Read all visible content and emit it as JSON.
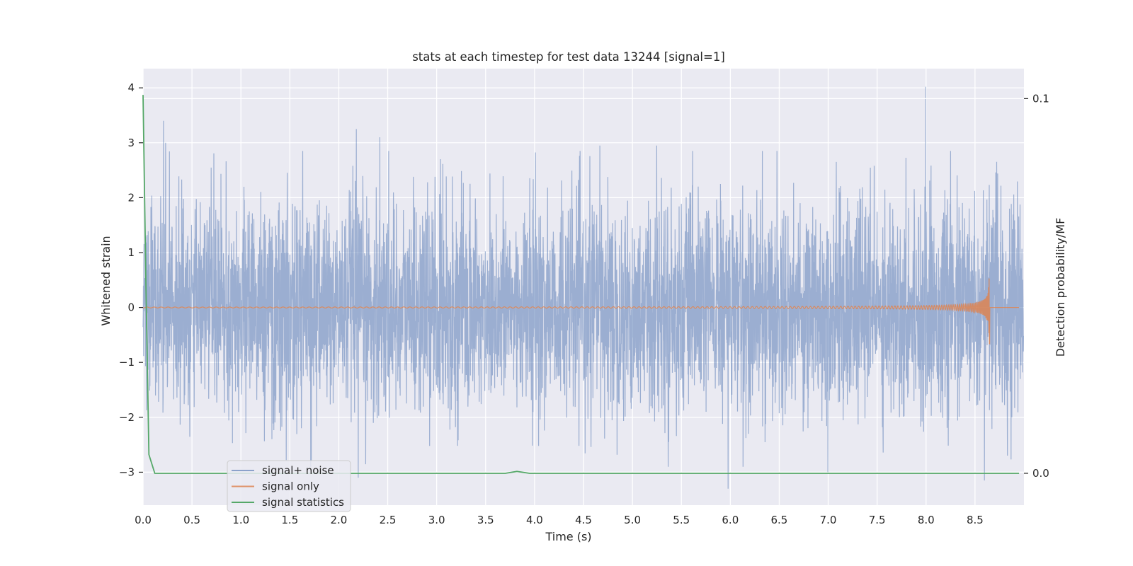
{
  "chart_data": {
    "type": "line",
    "title": "stats at each timestep for test data 13244 [signal=1]",
    "xlabel": "Time (s)",
    "ylabel": "Whitened strain",
    "ylabel_right": "Detection probability/MF",
    "xlim": [
      0,
      9.0
    ],
    "ylim": [
      -3.6,
      4.35
    ],
    "ylim_right": [
      -0.0085,
      0.108
    ],
    "x_ticks": [
      "0.0",
      "0.5",
      "1.0",
      "1.5",
      "2.0",
      "2.5",
      "3.0",
      "3.5",
      "4.0",
      "4.5",
      "5.0",
      "5.5",
      "6.0",
      "6.5",
      "7.0",
      "7.5",
      "8.0",
      "8.5"
    ],
    "y_ticks": [
      "4",
      "3",
      "2",
      "1",
      "0",
      "−1",
      "−2",
      "−3"
    ],
    "y_right_ticks": [
      "0.1",
      "0.0"
    ],
    "grid": true,
    "legend_position": "lower left",
    "colors": {
      "signal_noise": "#4c72b0",
      "signal_only": "#dd8452",
      "statistics": "#55a868",
      "background": "#eaeaf2",
      "grid": "#ffffff"
    },
    "series": [
      {
        "name": "signal+ noise",
        "axis": "left",
        "description_values": "whitened strain noise ~ N(0,1), range approx [-3.3, 4.0]",
        "notable_peaks": [
          {
            "x": 0.21,
            "y": 3.4
          },
          {
            "x": 0.23,
            "y": 3.0
          },
          {
            "x": 2.18,
            "y": 3.25
          },
          {
            "x": 2.42,
            "y": 3.1
          },
          {
            "x": 4.67,
            "y": 2.95
          },
          {
            "x": 5.25,
            "y": 2.95
          },
          {
            "x": 8.0,
            "y": 4.02
          },
          {
            "x": 2.2,
            "y": -3.1
          },
          {
            "x": 5.98,
            "y": -3.3
          },
          {
            "x": 8.6,
            "y": -3.15
          },
          {
            "x": 1.72,
            "y": -2.8
          },
          {
            "x": 7.0,
            "y": -3.0
          }
        ]
      },
      {
        "name": "signal only",
        "axis": "left",
        "chirp_start": 0.0,
        "chirp_merger": 8.65,
        "peak_amplitude": 0.55,
        "min_amplitude": -0.7,
        "post_merger_value": 0.0
      },
      {
        "name": "signal statistics",
        "axis": "right",
        "x": [
          0.0,
          0.03,
          0.06,
          0.12,
          0.5,
          1.0,
          2.0,
          3.0,
          3.5,
          3.7,
          3.82,
          3.95,
          4.5,
          5.0,
          6.0,
          7.0,
          8.0,
          8.5,
          8.95
        ],
        "y": [
          0.101,
          0.05,
          0.005,
          0.0,
          0.0,
          0.0,
          0.0,
          0.0,
          0.0,
          0.0,
          0.0005,
          0.0,
          0.0,
          0.0,
          0.0,
          0.0,
          0.0,
          0.0,
          0.0
        ]
      }
    ]
  }
}
